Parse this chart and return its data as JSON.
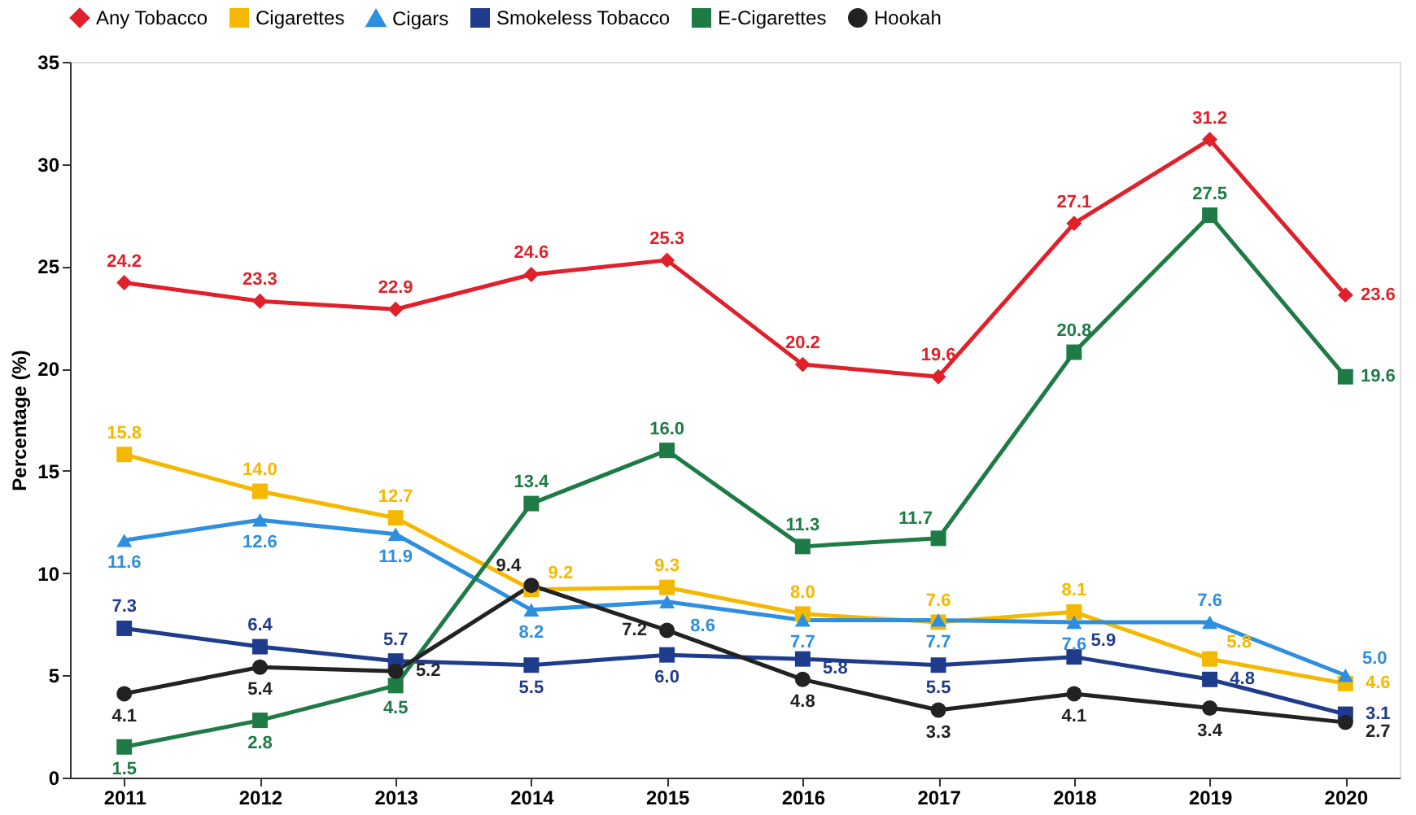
{
  "chart_data": {
    "type": "line",
    "ylabel": "Percentage (%)",
    "categories": [
      "2011",
      "2012",
      "2013",
      "2014",
      "2015",
      "2016",
      "2017",
      "2018",
      "2019",
      "2020"
    ],
    "series": [
      {
        "name": "Any Tobacco",
        "color": "#e0202a",
        "marker": "diamond",
        "values": [
          24.2,
          23.3,
          22.9,
          24.6,
          25.3,
          20.2,
          19.6,
          27.1,
          31.2,
          23.6
        ],
        "value_labels": [
          "24.2",
          "23.3",
          "22.9",
          "24.6",
          "25.3",
          "20.2",
          "19.6",
          "27.1",
          "31.2",
          "23.6"
        ]
      },
      {
        "name": "Cigarettes",
        "color": "#f5b800",
        "marker": "square",
        "values": [
          15.8,
          14.0,
          12.7,
          9.2,
          9.3,
          8.0,
          7.6,
          8.1,
          5.8,
          4.6
        ],
        "value_labels": [
          "15.8",
          "14.0",
          "12.7",
          "9.2",
          "9.3",
          "8.0",
          "7.6",
          "8.1",
          "5.8",
          "4.6"
        ]
      },
      {
        "name": "Cigars",
        "color": "#2e8fe0",
        "marker": "triangle",
        "values": [
          11.6,
          12.6,
          11.9,
          8.2,
          8.6,
          7.7,
          7.7,
          7.6,
          7.6,
          5.0
        ],
        "value_labels": [
          "11.6",
          "12.6",
          "11.9",
          "8.2",
          "8.6",
          "7.7",
          "7.7",
          "7.6",
          "7.6",
          "5.0"
        ]
      },
      {
        "name": "Smokeless Tobacco",
        "color": "#1f3c8c",
        "marker": "square",
        "values": [
          7.3,
          6.4,
          5.7,
          5.5,
          6.0,
          5.8,
          5.5,
          5.9,
          4.8,
          3.1
        ],
        "value_labels": [
          "7.3",
          "6.4",
          "5.7",
          "5.5",
          "6.0",
          "5.8",
          "5.5",
          "5.9",
          "4.8",
          "3.1"
        ]
      },
      {
        "name": "E-Cigarettes",
        "color": "#1e7b45",
        "marker": "square",
        "values": [
          1.5,
          2.8,
          4.5,
          13.4,
          16.0,
          11.3,
          11.7,
          20.8,
          27.5,
          19.6
        ],
        "value_labels": [
          "1.5",
          "2.8",
          "4.5",
          "13.4",
          "16.0",
          "11.3",
          "11.7",
          "20.8",
          "27.5",
          "19.6"
        ]
      },
      {
        "name": "Hookah",
        "color": "#222222",
        "marker": "circle",
        "values": [
          4.1,
          5.4,
          5.2,
          9.4,
          7.2,
          4.8,
          3.3,
          4.1,
          3.4,
          2.7
        ],
        "value_labels": [
          "4.1",
          "5.4",
          "5.2",
          "9.4",
          "7.2",
          "4.8",
          "3.3",
          "4.1",
          "3.4",
          "2.7"
        ]
      }
    ],
    "ylim": [
      0,
      35
    ],
    "yticks": [
      0,
      5,
      10,
      15,
      20,
      25,
      30,
      35
    ],
    "legend": "top",
    "grid": false
  }
}
